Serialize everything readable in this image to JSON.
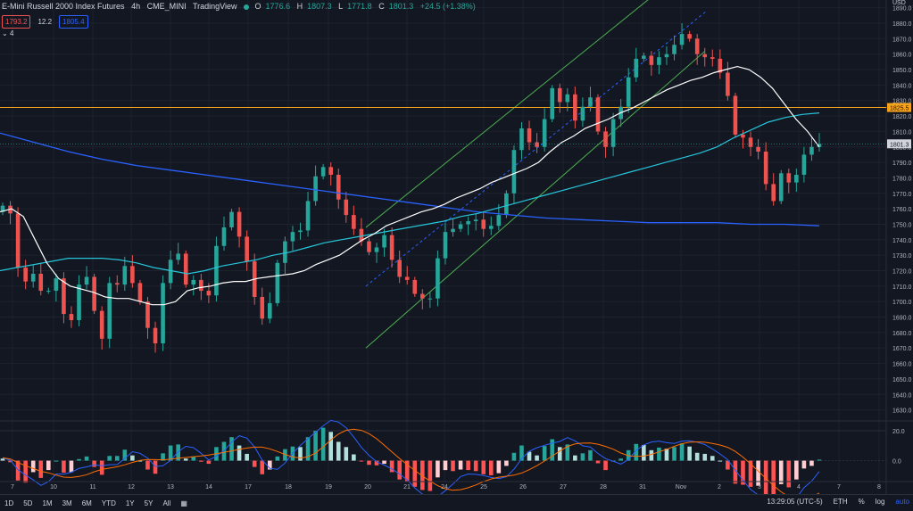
{
  "header": {
    "symbol": "E-Mini Russell 2000 Index Futures",
    "interval": "4h",
    "exchange": "CME_MINI",
    "source": "TradingView",
    "o_label": "O",
    "o_value": "1776.6",
    "h_label": "H",
    "h_value": "1807.3",
    "l_label": "L",
    "l_value": "1771.8",
    "c_label": "C",
    "c_value": "1801.3",
    "change": "+24.5 (+1.38%)"
  },
  "quote": {
    "bid": "1793.2",
    "spread": "12.2",
    "ask": "1805.4"
  },
  "studies_toggle": "4",
  "bottom_bar": {
    "timeframes": [
      "1D",
      "5D",
      "1M",
      "3M",
      "6M",
      "YTD",
      "1Y",
      "5Y",
      "All"
    ],
    "clock": "13:29:05 (UTC-5)",
    "session": "ETH",
    "percent": "%",
    "log": "log",
    "auto": "auto"
  },
  "colors": {
    "background": "#131722",
    "up": "#26a69a",
    "down": "#ef5350",
    "ma_fast": "#ffffff",
    "ma_mid": "#26c6da",
    "ma_slow": "#2962ff",
    "channel": "#4caf50",
    "level": "#f7a21b",
    "macd_line": "#2962ff",
    "signal_line": "#ff6d00"
  },
  "chart_data": {
    "type": "candlestick",
    "currency": "USD",
    "y_ticks": [
      1890,
      1880,
      1870,
      1860,
      1850,
      1840,
      1830,
      1820,
      1810,
      1800,
      1790,
      1780,
      1770,
      1760,
      1750,
      1740,
      1730,
      1720,
      1710,
      1700,
      1690,
      1680,
      1670,
      1660,
      1650,
      1640,
      1630
    ],
    "ylim": [
      1624,
      1895
    ],
    "x_labels": [
      "7",
      "10",
      "11",
      "12",
      "13",
      "14",
      "17",
      "18",
      "19",
      "20",
      "21",
      "24",
      "25",
      "26",
      "27",
      "28",
      "31",
      "Nov",
      "2",
      "3",
      "4",
      "7",
      "8"
    ],
    "last_price_label": "1801.3",
    "horizontal_level": 1825.5,
    "close_approx": [
      1762,
      1757,
      1722,
      1713,
      1718,
      1707,
      1707,
      1715,
      1692,
      1688,
      1711,
      1716,
      1694,
      1676,
      1712,
      1711,
      1723,
      1712,
      1700,
      1683,
      1673,
      1712,
      1727,
      1731,
      1711,
      1714,
      1707,
      1704,
      1736,
      1748,
      1758,
      1742,
      1726,
      1703,
      1689,
      1699,
      1725,
      1739,
      1745,
      1746,
      1765,
      1781,
      1787,
      1782,
      1766,
      1756,
      1747,
      1739,
      1732,
      1735,
      1743,
      1727,
      1716,
      1714,
      1705,
      1702,
      1702,
      1728,
      1745,
      1747,
      1750,
      1752,
      1753,
      1747,
      1749,
      1756,
      1770,
      1798,
      1812,
      1803,
      1800,
      1818,
      1838,
      1829,
      1834,
      1817,
      1826,
      1832,
      1810,
      1800,
      1818,
      1826,
      1845,
      1857,
      1859,
      1853,
      1858,
      1860,
      1866,
      1873,
      1870,
      1860,
      1858,
      1857,
      1848,
      1833,
      1808,
      1806,
      1800,
      1797,
      1776,
      1765,
      1783,
      1777,
      1782,
      1795,
      1800,
      1802
    ],
    "ma_fast_approx": [
      1758,
      1760,
      1755,
      1740,
      1725,
      1715,
      1710,
      1708,
      1706,
      1703,
      1702,
      1702,
      1700,
      1698,
      1698,
      1700,
      1707,
      1709,
      1710,
      1712,
      1713,
      1713,
      1715,
      1716,
      1717,
      1718,
      1720,
      1724,
      1727,
      1730,
      1735,
      1740,
      1744,
      1749,
      1752,
      1755,
      1758,
      1760,
      1763,
      1767,
      1770,
      1773,
      1777,
      1780,
      1783,
      1786,
      1790,
      1797,
      1803,
      1807,
      1812,
      1815,
      1818,
      1822,
      1825,
      1829,
      1833,
      1837,
      1840,
      1843,
      1845,
      1848,
      1850,
      1852,
      1850,
      1845,
      1838,
      1828,
      1818,
      1810,
      1800
    ],
    "ma_mid_approx": [
      1720,
      1722,
      1724,
      1726,
      1728,
      1728,
      1728,
      1727,
      1725,
      1722,
      1720,
      1718,
      1720,
      1723,
      1725,
      1727,
      1730,
      1732,
      1735,
      1738,
      1740,
      1742,
      1744,
      1746,
      1748,
      1750,
      1752,
      1755,
      1757,
      1760,
      1763,
      1766,
      1769,
      1772,
      1775,
      1778,
      1781,
      1784,
      1787,
      1790,
      1793,
      1796,
      1800,
      1806,
      1811,
      1816,
      1819,
      1821,
      1822
    ],
    "ma_slow_approx": [
      1809,
      1803,
      1797,
      1792,
      1788,
      1785,
      1782,
      1779,
      1776,
      1773,
      1770,
      1767,
      1764,
      1761,
      1758,
      1756,
      1754,
      1753,
      1752,
      1751,
      1751,
      1751,
      1750,
      1750,
      1749
    ],
    "oscillator": {
      "y_ticks": [
        20.0,
        0.0
      ],
      "ylim": [
        -14,
        26
      ]
    }
  }
}
